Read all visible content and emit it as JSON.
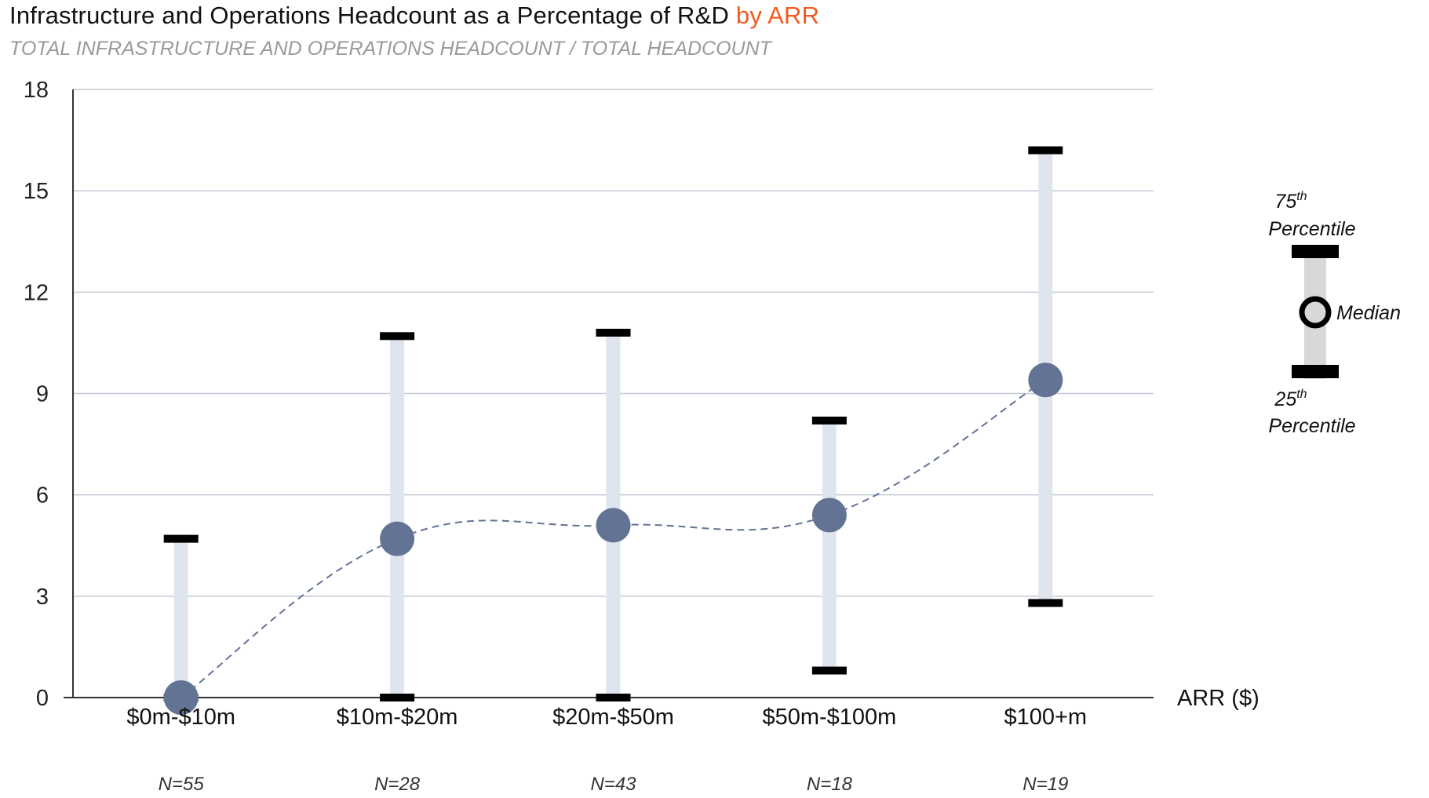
{
  "header": {
    "title_main": "Infrastructure and Operations Headcount as a Percentage of R&D",
    "title_accent": "by ARR",
    "subtitle": "TOTAL INFRASTRUCTURE AND OPERATIONS HEADCOUNT / TOTAL HEADCOUNT"
  },
  "colors": {
    "accent": "#f25a1f",
    "median_dot": "#637394",
    "range_bar": "#dfe5ee",
    "grid": "#c5cad6",
    "whisker": "#000000"
  },
  "legend": {
    "p75_num": "75",
    "p75_sup": "th",
    "p75_word": "Percentile",
    "median": "Median",
    "p25_num": "25",
    "p25_sup": "th",
    "p25_word": "Percentile"
  },
  "chart_data": {
    "type": "range-dot",
    "title": "Infrastructure and Operations Headcount as a Percentage of R&D by ARR",
    "subtitle": "TOTAL INFRASTRUCTURE AND OPERATIONS HEADCOUNT / TOTAL HEADCOUNT",
    "xlabel": "ARR ($)",
    "ylabel": "",
    "ylim": [
      0,
      18
    ],
    "yticks": [
      0,
      3,
      6,
      9,
      12,
      15,
      18
    ],
    "grid": true,
    "categories": [
      "$0m-$10m",
      "$10m-$20m",
      "$20m-$50m",
      "$50m-$100m",
      "$100+m"
    ],
    "sample_sizes": [
      "N=55",
      "N=28",
      "N=43",
      "N=18",
      "N=19"
    ],
    "p25": [
      0,
      0,
      0,
      0.8,
      2.8
    ],
    "median": [
      0,
      4.7,
      5.1,
      5.4,
      9.4
    ],
    "p75": [
      4.7,
      10.7,
      10.8,
      8.2,
      16.2
    ],
    "median_trend_line": "dashed"
  }
}
